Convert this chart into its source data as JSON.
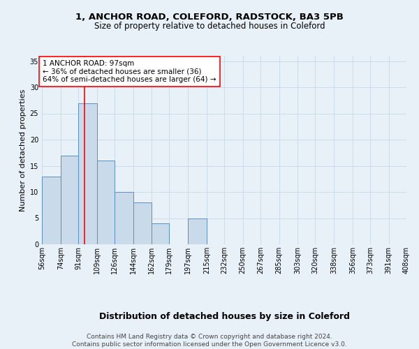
{
  "title1": "1, ANCHOR ROAD, COLEFORD, RADSTOCK, BA3 5PB",
  "title2": "Size of property relative to detached houses in Coleford",
  "xlabel": "Distribution of detached houses by size in Coleford",
  "ylabel": "Number of detached properties",
  "bin_edges": [
    56,
    74,
    91,
    109,
    126,
    144,
    162,
    179,
    197,
    215,
    232,
    250,
    267,
    285,
    303,
    320,
    338,
    356,
    373,
    391,
    408
  ],
  "bar_heights": [
    13,
    17,
    27,
    16,
    10,
    8,
    4,
    0,
    5,
    0,
    0,
    0,
    0,
    0,
    0,
    0,
    0,
    0,
    0,
    0
  ],
  "bar_color": "#c9daea",
  "bar_edge_color": "#5a8fc0",
  "bar_linewidth": 0.7,
  "vline_x": 97,
  "vline_color": "red",
  "vline_linewidth": 1.2,
  "annotation_text": "1 ANCHOR ROAD: 97sqm\n← 36% of detached houses are smaller (36)\n64% of semi-detached houses are larger (64) →",
  "annotation_box_color": "white",
  "annotation_box_edge_color": "red",
  "ylim": [
    0,
    36
  ],
  "yticks": [
    0,
    5,
    10,
    15,
    20,
    25,
    30,
    35
  ],
  "background_color": "#e8f0f8",
  "plot_bg_color": "#e8f0f8",
  "grid_color": "#c8d8e8",
  "footer_text": "Contains HM Land Registry data © Crown copyright and database right 2024.\nContains public sector information licensed under the Open Government Licence v3.0.",
  "title1_fontsize": 9.5,
  "title2_fontsize": 8.5,
  "xlabel_fontsize": 9,
  "ylabel_fontsize": 8,
  "annot_fontsize": 7.5,
  "tick_fontsize": 7,
  "footer_fontsize": 6.5
}
